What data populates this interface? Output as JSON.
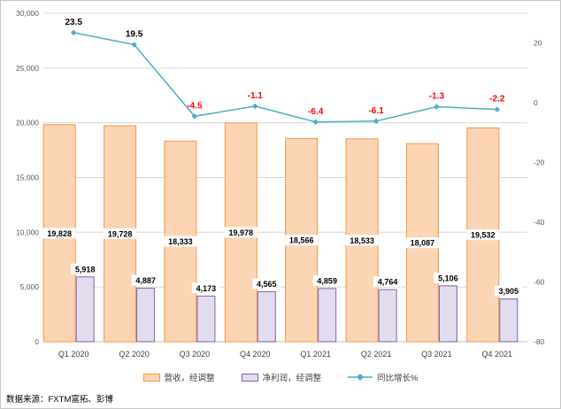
{
  "chart_data": {
    "type": "combo",
    "categories": [
      "Q1 2020",
      "Q2 2020",
      "Q3 2020",
      "Q4 2020",
      "Q1 2021",
      "Q2 2021",
      "Q3 2021",
      "Q4 2021"
    ],
    "series": [
      {
        "name": "营收，经调整",
        "type": "bar",
        "axis": "left",
        "values": [
          19828,
          19728,
          18333,
          19978,
          18566,
          18533,
          18087,
          19532
        ],
        "labels": [
          "19,828",
          "19,728",
          "18,333",
          "19,978",
          "18,566",
          "18,533",
          "18,087",
          "19,532"
        ],
        "fill": "#FCD5B4",
        "border": "#F79646"
      },
      {
        "name": "净利润，经调整",
        "type": "bar",
        "axis": "left",
        "values": [
          5918,
          4887,
          4173,
          4565,
          4859,
          4764,
          5106,
          3905
        ],
        "labels": [
          "5,918",
          "4,887",
          "4,173",
          "4,565",
          "4,859",
          "4,764",
          "5,106",
          "3,905"
        ],
        "fill": "#E2DCEE",
        "border": "#8064A2"
      },
      {
        "name": "同比增长%",
        "type": "line",
        "axis": "right",
        "values": [
          23.5,
          19.5,
          -4.5,
          -1.1,
          -6.4,
          -6.1,
          -1.3,
          -2.2
        ],
        "labels": [
          "23.5",
          "19.5",
          "-4.5",
          "-1.1",
          "-6.4",
          "-6.1",
          "-1.3",
          "-2.2"
        ],
        "label_colors": [
          "#000000",
          "#000000",
          "#FF0000",
          "#FF0000",
          "#FF0000",
          "#FF0000",
          "#FF0000",
          "#FF0000"
        ],
        "color": "#4BACC6"
      }
    ],
    "left_axis": {
      "min": 0,
      "max": 30000,
      "step": 5000,
      "tick_labels": [
        "0",
        "5,000",
        "10,000",
        "15,000",
        "20,000",
        "25,000",
        "30,000"
      ]
    },
    "right_axis": {
      "min": -80,
      "max": 30,
      "tick_values": [
        20,
        0,
        -20,
        -40,
        -60,
        -80
      ],
      "tick_labels": [
        "20",
        "0",
        "-20",
        "-40",
        "-60",
        "-80"
      ]
    },
    "grid": true,
    "legend_position": "bottom"
  },
  "colors": {
    "grid": "#D9D9D9",
    "zero_line": "#BFBFBF",
    "axis_text": "#595959",
    "value_label": "#000000",
    "background": "#FFFFFF",
    "frame_border": "#C8C8C8"
  },
  "source_note": "数据来源：FXTM富拓、彭博"
}
